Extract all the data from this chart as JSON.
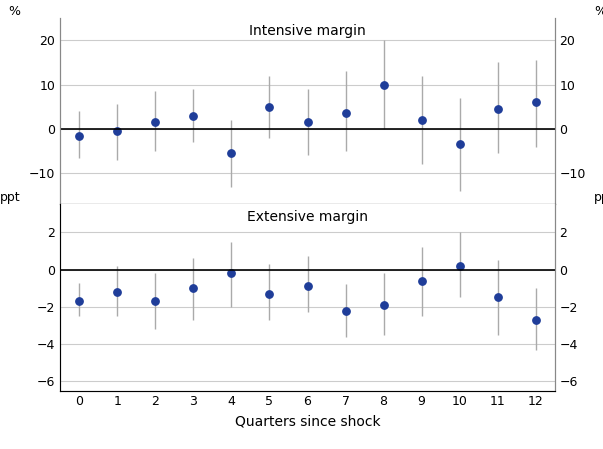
{
  "quarters": [
    0,
    1,
    2,
    3,
    4,
    5,
    6,
    7,
    8,
    9,
    10,
    11,
    12
  ],
  "intensive_center": [
    -1.5,
    -0.5,
    1.5,
    3.0,
    -5.5,
    5.0,
    1.5,
    3.5,
    10.0,
    2.0,
    -3.5,
    4.5,
    6.0
  ],
  "intensive_lower": [
    -6.5,
    -7.0,
    -5.0,
    -3.0,
    -13.0,
    -2.0,
    -6.0,
    -5.0,
    0.0,
    -8.0,
    -14.0,
    -5.5,
    -4.0
  ],
  "intensive_upper": [
    4.0,
    5.5,
    8.5,
    9.0,
    2.0,
    12.0,
    9.0,
    13.0,
    20.0,
    12.0,
    7.0,
    15.0,
    15.5
  ],
  "intensive_yticks": [
    -10,
    0,
    10,
    20
  ],
  "intensive_ylim": [
    -17,
    25
  ],
  "intensive_ylabel_left": "%",
  "intensive_ylabel_right": "%",
  "intensive_title": "Intensive margin",
  "extensive_center": [
    -1.7,
    -1.2,
    -1.7,
    -1.0,
    -0.2,
    -1.3,
    -0.9,
    -2.2,
    -1.9,
    -0.6,
    0.2,
    -1.5,
    -2.7
  ],
  "extensive_lower": [
    -2.5,
    -2.5,
    -3.2,
    -2.7,
    -2.0,
    -2.7,
    -2.3,
    -3.6,
    -3.5,
    -2.5,
    -1.5,
    -3.5,
    -4.3
  ],
  "extensive_upper": [
    -0.7,
    0.2,
    -0.2,
    0.6,
    1.5,
    0.3,
    0.7,
    -0.8,
    -0.2,
    1.2,
    2.0,
    0.5,
    -1.0
  ],
  "extensive_yticks": [
    -6,
    -4,
    -2,
    0,
    2
  ],
  "extensive_ylim": [
    -6.5,
    3.5
  ],
  "extensive_ylabel_left": "ppt",
  "extensive_ylabel_right": "ppt",
  "extensive_title": "Extensive margin",
  "xlabel": "Quarters since shock",
  "dot_color": "#1f3d99",
  "error_color": "#aaaaaa",
  "zero_line_color": "black",
  "grid_color": "#cccccc",
  "background_color": "white"
}
